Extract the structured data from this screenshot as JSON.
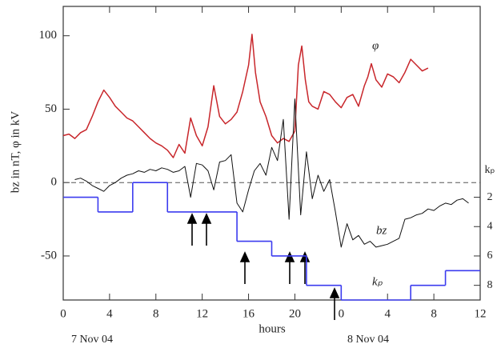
{
  "chart_data": {
    "type": "line",
    "xlabel": "hours",
    "ylabel": "bz in nT, φ in kV",
    "y2label": "kₚ",
    "annotations": [
      "7 Nov 04",
      "8 Nov 04"
    ],
    "xlim": [
      0,
      36
    ],
    "xticks": [
      0,
      4,
      8,
      12,
      16,
      20,
      {
        "value": 24,
        "label": "0"
      },
      {
        "value": 28,
        "label": "4"
      },
      {
        "value": 32,
        "label": "8"
      },
      {
        "value": 36,
        "label": "12"
      }
    ],
    "ylim": [
      -80,
      120
    ],
    "yticks": [
      -50,
      0,
      50,
      100
    ],
    "y2lim": [
      9,
      -11
    ],
    "y2ticks": [
      2,
      4,
      6,
      8
    ],
    "zero_line": true,
    "series": [
      {
        "name": "φ",
        "color": "#c8262b",
        "x": [
          0,
          0.5,
          1,
          1.5,
          2,
          2.5,
          3,
          3.5,
          4,
          4.5,
          5,
          5.5,
          6,
          6.5,
          7,
          7.5,
          8,
          8.5,
          9,
          9.5,
          10,
          10.5,
          11,
          11.5,
          12,
          12.5,
          13,
          13.5,
          14,
          14.5,
          15,
          15.5,
          16,
          16.3,
          16.6,
          17,
          17.5,
          18,
          18.5,
          19,
          19.5,
          20,
          20.3,
          20.6,
          20.9,
          21.2,
          21.5,
          22,
          22.5,
          23,
          23.5,
          24,
          24.5,
          25,
          25.5,
          26,
          26.3,
          26.6,
          27,
          27.5,
          28,
          28.5,
          29,
          29.5,
          30,
          30.5,
          31,
          31.5
        ],
        "values": [
          32,
          33,
          30,
          34,
          36,
          45,
          55,
          63,
          58,
          52,
          48,
          44,
          42,
          38,
          34,
          30,
          27,
          25,
          22,
          17,
          26,
          20,
          44,
          32,
          25,
          38,
          66,
          45,
          40,
          43,
          48,
          62,
          80,
          101,
          75,
          55,
          45,
          32,
          27,
          30,
          28,
          35,
          80,
          93,
          70,
          55,
          52,
          50,
          62,
          60,
          55,
          51,
          58,
          60,
          52,
          66,
          72,
          81,
          70,
          65,
          74,
          72,
          68,
          75,
          84,
          80,
          76,
          78
        ]
      },
      {
        "name": "bz",
        "color": "#111111",
        "x": [
          1,
          1.5,
          2,
          2.5,
          3,
          3.5,
          4,
          4.5,
          5,
          5.5,
          6,
          6.5,
          7,
          7.5,
          8,
          8.5,
          9,
          9.5,
          10,
          10.5,
          11,
          11.5,
          12,
          12.5,
          13,
          13.5,
          14,
          14.5,
          15,
          15.5,
          16,
          16.5,
          17,
          17.5,
          18,
          18.5,
          19,
          19.5,
          20,
          20.5,
          21,
          21.5,
          22,
          22.5,
          23,
          23.5,
          24,
          24.5,
          25,
          25.5,
          26,
          26.5,
          27,
          27.5,
          28,
          28.5,
          29,
          29.5,
          30,
          30.5,
          31,
          31.5,
          32,
          32.5,
          33,
          33.5,
          34,
          34.5,
          35
        ],
        "values": [
          2,
          3,
          1,
          -2,
          -4,
          -6,
          -2,
          0,
          3,
          5,
          6,
          8,
          7,
          9,
          8,
          10,
          9,
          7,
          8,
          11,
          -10,
          13,
          12,
          8,
          -5,
          14,
          15,
          19,
          -14,
          -20,
          -5,
          8,
          13,
          5,
          24,
          15,
          43,
          -25,
          57,
          -22,
          21,
          -11,
          5,
          -6,
          2,
          -20,
          -44,
          -28,
          -39,
          -36,
          -42,
          -40,
          -44,
          -43,
          -42,
          -40,
          -38,
          -25,
          -24,
          -22,
          -21,
          -18,
          -19,
          -16,
          -14,
          -15,
          -12,
          -11,
          -14
        ]
      },
      {
        "name": "kₚ",
        "color": "#3b3bef",
        "axis": "y2",
        "step": true,
        "x": [
          0,
          3,
          6,
          9,
          12,
          15,
          18,
          21,
          24,
          27,
          30,
          33
        ],
        "values": [
          2,
          3,
          1,
          3,
          3,
          5,
          6,
          8,
          9,
          9,
          8,
          7
        ]
      }
    ]
  }
}
